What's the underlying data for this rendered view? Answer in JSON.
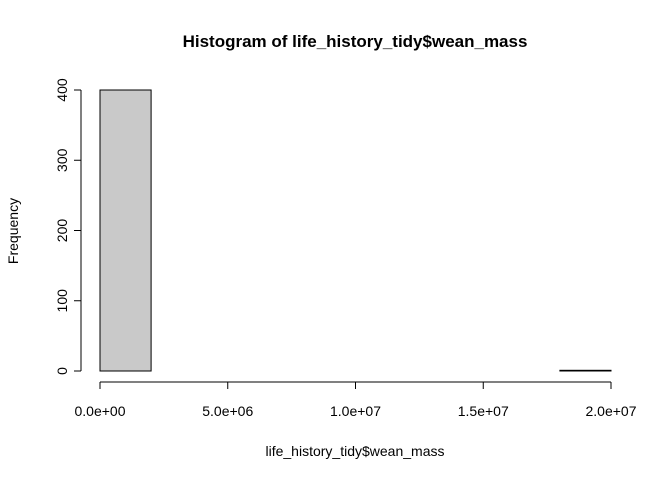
{
  "chart_data": {
    "type": "bar",
    "title": "Histogram of life_history_tidy$wean_mass",
    "xlabel": "life_history_tidy$wean_mass",
    "ylabel": "Frequency",
    "xlim": [
      0,
      20000000
    ],
    "ylim": [
      0,
      400
    ],
    "x_ticks": [
      0,
      5000000,
      10000000,
      15000000,
      20000000
    ],
    "x_tick_labels": [
      "0.0e+00",
      "5.0e+06",
      "1.0e+07",
      "1.5e+07",
      "2.0e+07"
    ],
    "y_ticks": [
      0,
      100,
      200,
      300,
      400
    ],
    "y_tick_labels": [
      "0",
      "100",
      "200",
      "300",
      "400"
    ],
    "bin_width": 2000000,
    "bins": [
      {
        "start": 0,
        "end": 2000000,
        "count": 400
      },
      {
        "start": 2000000,
        "end": 4000000,
        "count": 0
      },
      {
        "start": 4000000,
        "end": 6000000,
        "count": 0
      },
      {
        "start": 6000000,
        "end": 8000000,
        "count": 0
      },
      {
        "start": 8000000,
        "end": 10000000,
        "count": 0
      },
      {
        "start": 10000000,
        "end": 12000000,
        "count": 0
      },
      {
        "start": 12000000,
        "end": 14000000,
        "count": 0
      },
      {
        "start": 14000000,
        "end": 16000000,
        "count": 0
      },
      {
        "start": 16000000,
        "end": 18000000,
        "count": 0
      },
      {
        "start": 18000000,
        "end": 20000000,
        "count": 1
      }
    ],
    "bar_color": "#c9c9c9",
    "grid": false
  }
}
